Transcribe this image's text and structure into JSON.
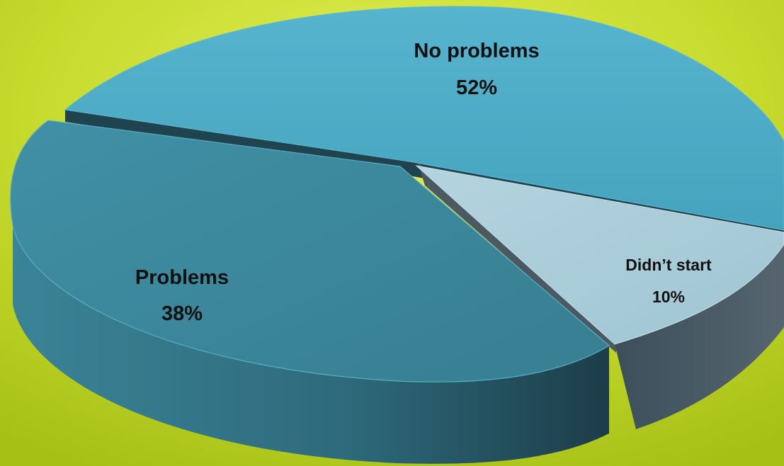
{
  "chart_data": {
    "type": "pie",
    "title": "",
    "slices": [
      {
        "label": "No problems",
        "value": 52,
        "display": "52%",
        "color": "#4ba9c5"
      },
      {
        "label": "Problems",
        "value": 38,
        "display": "38%",
        "color": "#3a8599"
      },
      {
        "label": "Didn’t start",
        "value": 10,
        "display": "10%",
        "color": "#a7cbd8"
      }
    ],
    "three_d": true,
    "exploded_slice": "Didn’t start"
  },
  "background": {
    "color": "#b4cc1a",
    "highlight": "#dfee54"
  }
}
